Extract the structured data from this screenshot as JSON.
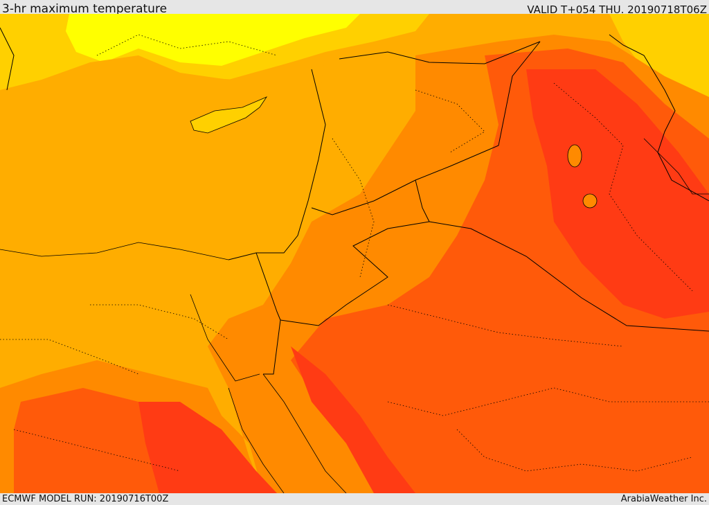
{
  "header": {
    "title": "3-hr maximum temperature",
    "valid": "VALID T+054 THU. 20190718T06Z"
  },
  "footer": {
    "model_run": "ECMWF MODEL RUN: 20190716T00Z",
    "credit": "ArabiaWeather Inc."
  },
  "map": {
    "type": "temperature-shaded-map",
    "palette": {
      "very_hot": "#ff3b14",
      "hot": "#ff5a0a",
      "warm": "#ff8a00",
      "mild": "#ffad00",
      "moderate": "#ffd000",
      "cool": "#ffff00",
      "borders": "#000000"
    }
  }
}
